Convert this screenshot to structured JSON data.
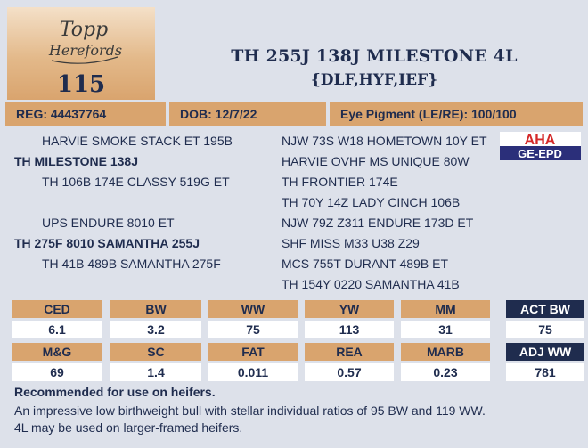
{
  "logo": {
    "text_line1": "Topp",
    "text_line2": "Herefords"
  },
  "lot_number": "115",
  "bull_name": "TH 255J 138J MILESTONE 4L",
  "designations": "{DLF,HYF,IEF}",
  "info": {
    "reg": "REG: 44437764",
    "dob": "DOB: 12/7/22",
    "eye_pigment": "Eye Pigment (LE/RE): 100/100"
  },
  "pedigree_left": [
    "HARVIE SMOKE STACK ET 195B",
    "TH MILESTONE 138J",
    "TH 106B 174E CLASSY 519G ET",
    "UPS ENDURE 8010 ET",
    "TH 275F 8010 SAMANTHA 255J",
    "TH 41B 489B SAMANTHA 275F"
  ],
  "pedigree_right": [
    "NJW 73S W18 HOMETOWN 10Y ET",
    "HARVIE OVHF MS UNIQUE 80W",
    "TH FRONTIER 174E",
    "TH 70Y 14Z LADY CINCH 106B",
    "NJW 79Z Z311 ENDURE 173D ET",
    "SHF MISS M33 U38 Z29",
    "MCS 755T DURANT 489B ET",
    "TH 154Y 0220 SAMANTHA 41B"
  ],
  "aha_badge": {
    "top": "AHA",
    "bottom": "GE-EPD"
  },
  "epd_row1": {
    "headers": [
      "CED",
      "BW",
      "WW",
      "YW",
      "MM"
    ],
    "values": [
      "6.1",
      "3.2",
      "75",
      "113",
      "31"
    ]
  },
  "epd_row2": {
    "headers": [
      "M&G",
      "SC",
      "FAT",
      "REA",
      "MARB"
    ],
    "values": [
      "69",
      "1.4",
      "0.011",
      "0.57",
      "0.23"
    ]
  },
  "actual": {
    "act_bw_label": "ACT BW",
    "act_bw_value": "75",
    "adj_ww_label": "ADJ WW",
    "adj_ww_value": "781"
  },
  "recommendation": {
    "title": "Recommended for use on heifers.",
    "line1": "An impressive low birthweight bull with stellar individual ratios of 95 BW and 119 WW.",
    "line2": "4L may be used on larger-framed heifers."
  },
  "colors": {
    "navy": "#1f2c4e",
    "tan": "#d9a46e",
    "background": "#dde1ea",
    "aha_red": "#d42a2a"
  }
}
